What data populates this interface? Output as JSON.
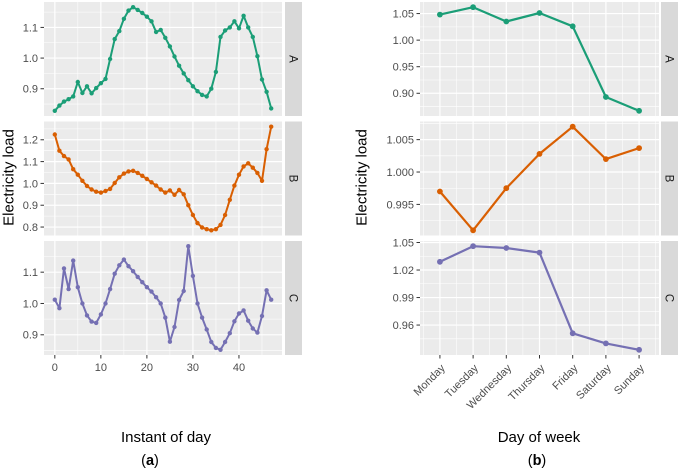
{
  "theme": {
    "panel_bg": "#EBEBEB",
    "strip_bg": "#D9D9D9",
    "grid": "#FFFFFF",
    "tick_text": "#4D4D4D",
    "tick_mark": "#333333",
    "strip_text": "#1A1A1A",
    "axis_title": "#000000"
  },
  "chart_data": [
    {
      "id": "a",
      "type": "line",
      "xlabel": "Instant of day",
      "ylabel": "Electricity load",
      "caption": {
        "open": "(",
        "letter": "a",
        "close": ")"
      },
      "legend": "none",
      "grid": "on",
      "x_ticks": {
        "values": [
          0,
          10,
          20,
          30,
          40
        ],
        "labels": [
          "0",
          "10",
          "20",
          "30",
          "40"
        ]
      },
      "x": [
        0,
        1,
        2,
        3,
        4,
        5,
        6,
        7,
        8,
        9,
        10,
        11,
        12,
        13,
        14,
        15,
        16,
        17,
        18,
        19,
        20,
        21,
        22,
        23,
        24,
        25,
        26,
        27,
        28,
        29,
        30,
        31,
        32,
        33,
        34,
        35,
        36,
        37,
        38,
        39,
        40,
        41,
        42,
        43,
        44,
        45,
        46,
        47
      ],
      "facets": [
        {
          "label": "A",
          "color": "#1B9E77",
          "y_ticks": {
            "values": [
              0.9,
              1.0,
              1.1
            ],
            "labels": [
              "0.9",
              "1.0",
              "1.1"
            ]
          },
          "values": [
            0.828,
            0.845,
            0.858,
            0.866,
            0.875,
            0.922,
            0.886,
            0.908,
            0.885,
            0.902,
            0.918,
            0.932,
            0.997,
            1.062,
            1.088,
            1.128,
            1.155,
            1.166,
            1.157,
            1.147,
            1.135,
            1.12,
            1.085,
            1.092,
            1.066,
            1.038,
            1.005,
            0.975,
            0.95,
            0.928,
            0.908,
            0.892,
            0.88,
            0.875,
            0.9,
            0.955,
            1.069,
            1.09,
            1.1,
            1.12,
            1.097,
            1.138,
            1.1,
            1.069,
            1.006,
            0.93,
            0.89,
            0.836
          ]
        },
        {
          "label": "B",
          "color": "#D95F02",
          "y_ticks": {
            "values": [
              0.8,
              0.9,
              1.0,
              1.1,
              1.2
            ],
            "labels": [
              "0.8",
              "0.9",
              "1.0",
              "1.1",
              "1.2"
            ]
          },
          "values": [
            1.224,
            1.15,
            1.125,
            1.11,
            1.065,
            1.04,
            1.012,
            0.988,
            0.972,
            0.962,
            0.958,
            0.965,
            0.975,
            1.002,
            1.028,
            1.045,
            1.055,
            1.058,
            1.048,
            1.035,
            1.02,
            1.005,
            0.99,
            0.972,
            0.958,
            0.968,
            0.948,
            0.97,
            0.95,
            0.9,
            0.855,
            0.818,
            0.798,
            0.79,
            0.785,
            0.79,
            0.81,
            0.855,
            0.925,
            0.99,
            1.04,
            1.078,
            1.092,
            1.072,
            1.048,
            1.012,
            1.157,
            1.26
          ]
        },
        {
          "label": "C",
          "color": "#7570B3",
          "y_ticks": {
            "values": [
              0.9,
              1.0,
              1.1
            ],
            "labels": [
              "0.9",
              "1.0",
              "1.1"
            ]
          },
          "values": [
            1.012,
            0.985,
            1.112,
            1.046,
            1.137,
            1.052,
            1.0,
            0.962,
            0.942,
            0.938,
            0.965,
            1.0,
            1.046,
            1.095,
            1.122,
            1.14,
            1.119,
            1.103,
            1.085,
            1.068,
            1.052,
            1.038,
            1.02,
            1.0,
            0.955,
            0.878,
            0.925,
            1.011,
            1.04,
            1.183,
            1.088,
            1.0,
            0.955,
            0.917,
            0.877,
            0.858,
            0.852,
            0.877,
            0.905,
            0.943,
            0.968,
            0.978,
            0.945,
            0.92,
            0.907,
            0.96,
            1.042,
            1.012
          ]
        }
      ]
    },
    {
      "id": "b",
      "type": "line",
      "xlabel": "Day of week",
      "ylabel": "Electricity load",
      "caption": {
        "open": "(",
        "letter": "b",
        "close": ")"
      },
      "legend": "none",
      "grid": "on",
      "categories": [
        "Monday",
        "Tuesday",
        "Wednesday",
        "Thursday",
        "Friday",
        "Saturday",
        "Sunday"
      ],
      "facets": [
        {
          "label": "A",
          "color": "#1B9E77",
          "y_ticks": {
            "values": [
              0.9,
              0.95,
              1.0,
              1.05
            ],
            "labels": [
              "0.90",
              "0.95",
              "1.00",
              "1.05"
            ]
          },
          "values": [
            1.048,
            1.062,
            1.035,
            1.051,
            1.026,
            0.893,
            0.867
          ]
        },
        {
          "label": "B",
          "color": "#D95F02",
          "y_ticks": {
            "values": [
              0.995,
              1.0,
              1.005
            ],
            "labels": [
              "0.995",
              "1.000",
              "1.005"
            ]
          },
          "values": [
            0.997,
            0.991,
            0.9975,
            1.0028,
            1.007,
            1.002,
            1.0037
          ]
        },
        {
          "label": "C",
          "color": "#7570B3",
          "y_ticks": {
            "values": [
              0.96,
              0.99,
              1.02,
              1.05
            ],
            "labels": [
              "0.96",
              "0.99",
              "1.02",
              "1.05"
            ]
          },
          "values": [
            1.029,
            1.046,
            1.044,
            1.039,
            0.951,
            0.94,
            0.933
          ]
        }
      ]
    }
  ]
}
